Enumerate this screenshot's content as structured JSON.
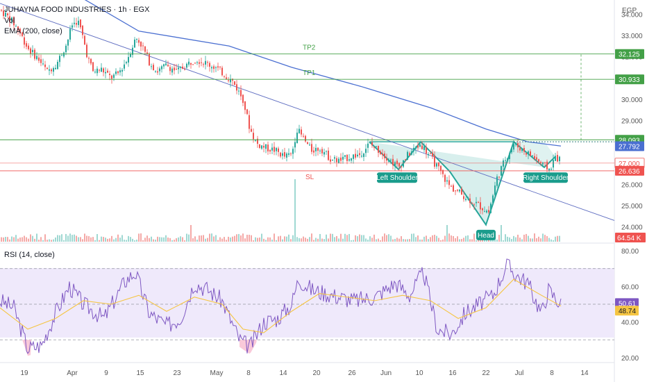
{
  "header": {
    "symbol_line": "JUHAYNA FOOD INDUSTRIES · 1h · EGX",
    "vol_label": "Vol",
    "ema_label": "EMA (200, close)",
    "currency": "EGP",
    "rsi_label": "RSI (14, close)"
  },
  "chart_data": [
    {
      "type": "candlestick",
      "title": "JUHAYNA FOOD INDUSTRIES · 1h · EGX",
      "currency": "EGP",
      "ylim": [
        23.5,
        34.4
      ],
      "y_ticks": [
        "24.000",
        "25.000",
        "26.000",
        "27.000",
        "28.000",
        "29.000",
        "30.000",
        "31.000",
        "32.000",
        "33.000",
        "34.000"
      ],
      "x_ticks": [
        "19",
        "Apr",
        "9",
        "15",
        "23",
        "May",
        "8",
        "14",
        "20",
        "26",
        "Jun",
        "10",
        "16",
        "22",
        "Jul",
        "8",
        "14"
      ],
      "price_path": [
        [
          0,
          34.2
        ],
        [
          14,
          33.8
        ],
        [
          26,
          33.3
        ],
        [
          40,
          32.4
        ],
        [
          55,
          31.9
        ],
        [
          68,
          31.3
        ],
        [
          82,
          31.7
        ],
        [
          96,
          32.6
        ],
        [
          104,
          33.5
        ],
        [
          112,
          33.7
        ],
        [
          118,
          33.1
        ],
        [
          126,
          32.0
        ],
        [
          134,
          31.3
        ],
        [
          146,
          31.4
        ],
        [
          160,
          31.0
        ],
        [
          170,
          31.2
        ],
        [
          182,
          31.8
        ],
        [
          196,
          32.9
        ],
        [
          205,
          32.5
        ],
        [
          214,
          31.8
        ],
        [
          226,
          31.3
        ],
        [
          240,
          31.6
        ],
        [
          255,
          31.3
        ],
        [
          268,
          31.6
        ],
        [
          282,
          31.9
        ],
        [
          296,
          31.7
        ],
        [
          310,
          31.5
        ],
        [
          322,
          31.2
        ],
        [
          336,
          30.8
        ],
        [
          350,
          30.0
        ],
        [
          360,
          28.6
        ],
        [
          370,
          27.9
        ],
        [
          384,
          27.7
        ],
        [
          396,
          27.6
        ],
        [
          410,
          27.3
        ],
        [
          420,
          27.4
        ],
        [
          428,
          28.6
        ],
        [
          436,
          28.2
        ],
        [
          448,
          27.6
        ],
        [
          462,
          27.7
        ],
        [
          476,
          27.2
        ],
        [
          490,
          27.1
        ],
        [
          504,
          27.3
        ],
        [
          518,
          27.4
        ],
        [
          532,
          27.9
        ],
        [
          546,
          27.6
        ],
        [
          560,
          27.2
        ],
        [
          574,
          26.8
        ],
        [
          588,
          27.4
        ],
        [
          606,
          27.9
        ],
        [
          620,
          27.3
        ],
        [
          634,
          26.6
        ],
        [
          648,
          25.9
        ],
        [
          662,
          25.6
        ],
        [
          676,
          25.3
        ],
        [
          690,
          25.0
        ],
        [
          704,
          24.7
        ],
        [
          716,
          26.3
        ],
        [
          728,
          27.2
        ],
        [
          740,
          27.9
        ],
        [
          754,
          27.6
        ],
        [
          768,
          27.3
        ],
        [
          782,
          26.9
        ],
        [
          792,
          26.7
        ],
        [
          800,
          27.3
        ],
        [
          808,
          27.1
        ]
      ],
      "volume_max_label": "64.54 K"
    },
    {
      "type": "line",
      "name": "EMA (200, close)",
      "color": "#4a6fd1",
      "points": [
        [
          0,
          37.0
        ],
        [
          200,
          33.2
        ],
        [
          330,
          32.5
        ],
        [
          420,
          31.5
        ],
        [
          520,
          30.6
        ],
        [
          620,
          29.6
        ],
        [
          700,
          28.6
        ],
        [
          760,
          28.0
        ],
        [
          808,
          27.8
        ]
      ],
      "last_value": "27.792"
    },
    {
      "type": "levels",
      "levels": [
        {
          "label": "TP2",
          "value": 32.125,
          "badge": "32.125",
          "color": "#43a047"
        },
        {
          "label": "TP1",
          "value": 30.933,
          "badge": "30.933",
          "color": "#43a047"
        },
        {
          "label": "",
          "value": 28.093,
          "badge": "28.093",
          "color": "#43a047"
        },
        {
          "label": "",
          "value": 27.0,
          "badge": "27.000",
          "color": "#ef5350"
        },
        {
          "label": "SL",
          "value": 26.636,
          "badge": "26.636",
          "color": "#ef5350"
        }
      ]
    },
    {
      "type": "pattern",
      "name": "inverse head and shoulders",
      "labels": [
        "Left Shoulder",
        "Head",
        "Right Shoulder"
      ],
      "points": [
        [
          532,
          28.0
        ],
        [
          574,
          26.7
        ],
        [
          606,
          28.0
        ],
        [
          648,
          26.6
        ],
        [
          700,
          24.1
        ],
        [
          740,
          28.0
        ],
        [
          784,
          26.8
        ],
        [
          800,
          27.3
        ]
      ]
    },
    {
      "type": "line",
      "name": "RSI (14, close)",
      "ylim": [
        18,
        82
      ],
      "y_ticks": [
        "20.00",
        "40.00",
        "60.00",
        "80.00"
      ],
      "bands": [
        30,
        50,
        70
      ],
      "rsi": [
        [
          0,
          52
        ],
        [
          20,
          48
        ],
        [
          40,
          25
        ],
        [
          60,
          27
        ],
        [
          80,
          45
        ],
        [
          100,
          60
        ],
        [
          120,
          50
        ],
        [
          150,
          42
        ],
        [
          180,
          63
        ],
        [
          195,
          68
        ],
        [
          215,
          45
        ],
        [
          240,
          38
        ],
        [
          260,
          42
        ],
        [
          280,
          62
        ],
        [
          300,
          58
        ],
        [
          320,
          52
        ],
        [
          345,
          30
        ],
        [
          360,
          26
        ],
        [
          380,
          40
        ],
        [
          400,
          42
        ],
        [
          420,
          50
        ],
        [
          430,
          64
        ],
        [
          450,
          58
        ],
        [
          480,
          55
        ],
        [
          510,
          52
        ],
        [
          540,
          54
        ],
        [
          570,
          62
        ],
        [
          590,
          55
        ],
        [
          610,
          68
        ],
        [
          630,
          36
        ],
        [
          650,
          33
        ],
        [
          670,
          45
        ],
        [
          690,
          50
        ],
        [
          710,
          55
        ],
        [
          730,
          72
        ],
        [
          745,
          66
        ],
        [
          760,
          62
        ],
        [
          780,
          45
        ],
        [
          790,
          58
        ],
        [
          808,
          50
        ]
      ],
      "rsi_ma": [
        [
          0,
          48
        ],
        [
          40,
          36
        ],
        [
          80,
          42
        ],
        [
          120,
          52
        ],
        [
          160,
          50
        ],
        [
          200,
          55
        ],
        [
          240,
          46
        ],
        [
          280,
          54
        ],
        [
          320,
          50
        ],
        [
          350,
          36
        ],
        [
          380,
          34
        ],
        [
          420,
          46
        ],
        [
          460,
          56
        ],
        [
          500,
          54
        ],
        [
          540,
          52
        ],
        [
          580,
          55
        ],
        [
          620,
          52
        ],
        [
          660,
          42
        ],
        [
          700,
          48
        ],
        [
          740,
          64
        ],
        [
          780,
          55
        ],
        [
          808,
          49
        ]
      ],
      "rsi_value": "50.61",
      "ma_value": "48.74"
    }
  ],
  "colors": {
    "up": "#26a69a",
    "down": "#ef5350",
    "ema": "#4a6fd1",
    "rsi": "#7e57c2",
    "rsi_ma": "#f5c542"
  }
}
